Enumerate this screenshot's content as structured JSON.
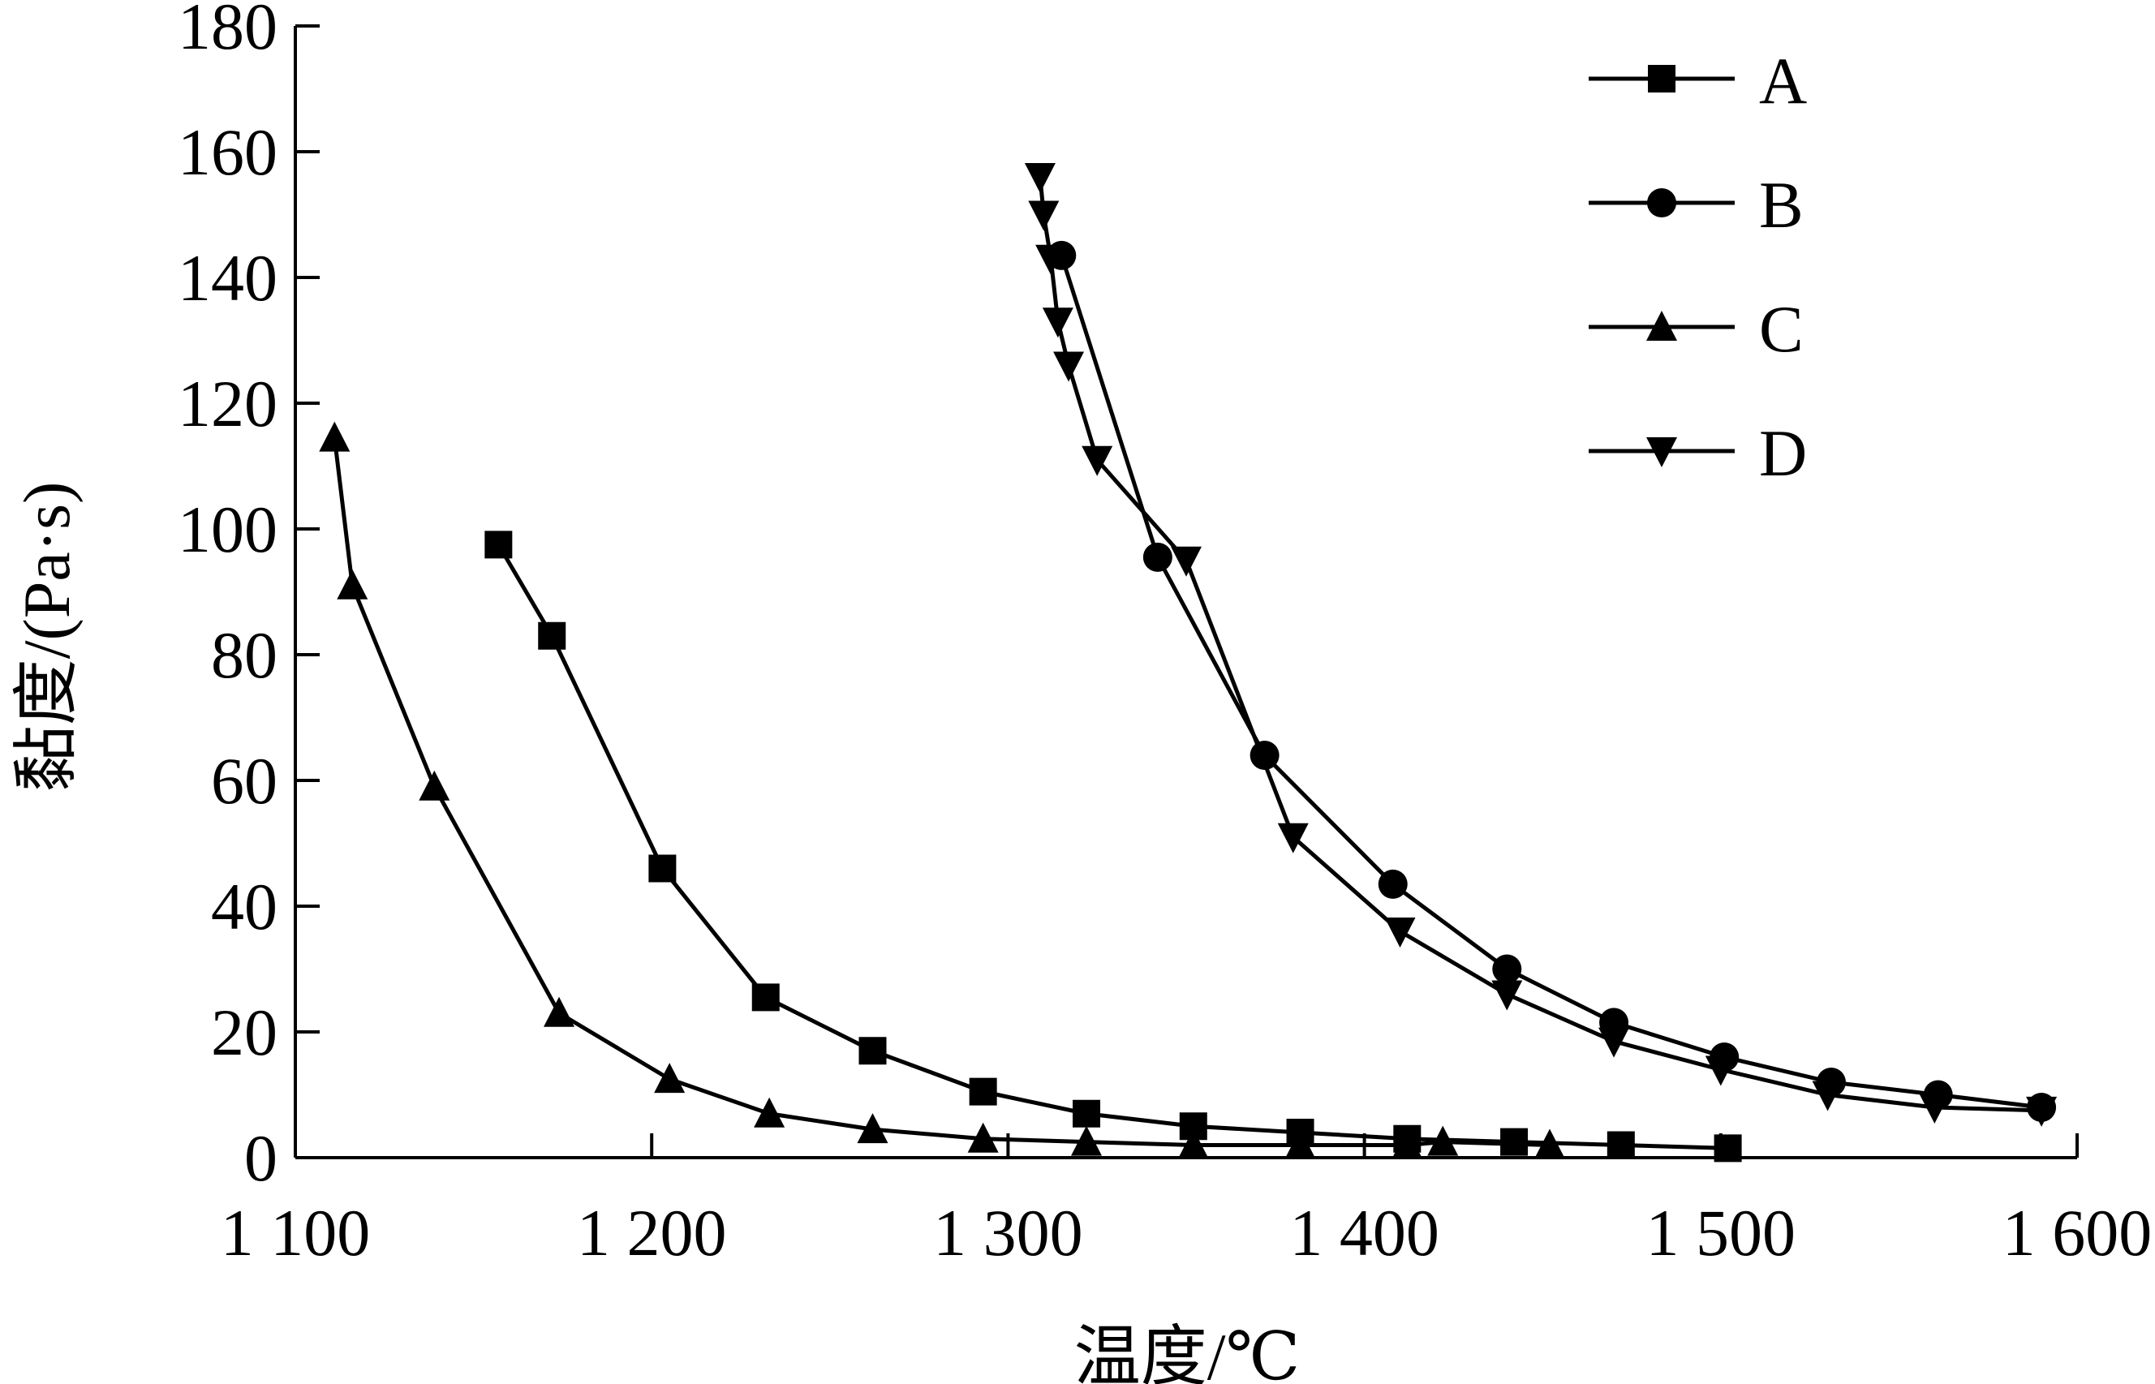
{
  "chart_data": {
    "type": "line",
    "title": "",
    "xlabel": "温度/℃",
    "ylabel": "黏度/(Pa·s)",
    "xlim": [
      1100,
      1600
    ],
    "ylim": [
      0,
      180
    ],
    "x_ticks": [
      1100,
      1200,
      1300,
      1400,
      1500,
      1600
    ],
    "x_tick_labels": [
      "1 100",
      "1 200",
      "1 300",
      "1 400",
      "1 500",
      "1 600"
    ],
    "y_ticks": [
      0,
      20,
      40,
      60,
      80,
      100,
      120,
      140,
      160,
      180
    ],
    "y_tick_labels": [
      "0",
      "20",
      "40",
      "60",
      "80",
      "100",
      "120",
      "140",
      "160",
      "180"
    ],
    "grid": false,
    "legend_position": "top-right",
    "series": [
      {
        "name": "A",
        "marker": "square",
        "x": [
          1157,
          1172,
          1203,
          1232,
          1262,
          1293,
          1322,
          1352,
          1382,
          1412,
          1442,
          1472,
          1502
        ],
        "y": [
          97.5,
          83,
          46,
          25.5,
          17,
          10.5,
          7,
          5,
          4,
          3,
          2.5,
          2,
          1.5
        ]
      },
      {
        "name": "B",
        "marker": "circle",
        "x": [
          1315,
          1342,
          1372,
          1408,
          1440,
          1470,
          1501,
          1531,
          1561,
          1590
        ],
        "y": [
          143.5,
          95.5,
          64,
          43.5,
          30,
          21.5,
          16,
          12,
          10,
          8
        ]
      },
      {
        "name": "C",
        "marker": "triangle-up",
        "x": [
          1111,
          1116,
          1139,
          1174,
          1205,
          1233,
          1262,
          1293,
          1322,
          1352,
          1382,
          1412,
          1422,
          1452
        ],
        "y": [
          114.5,
          91,
          59,
          23,
          12.5,
          7,
          4.5,
          3,
          2.5,
          2,
          2,
          2,
          2.5,
          2
        ]
      },
      {
        "name": "D",
        "marker": "triangle-down",
        "x": [
          1309,
          1310,
          1312,
          1314,
          1317,
          1325,
          1350,
          1380,
          1410,
          1440,
          1470,
          1500,
          1530,
          1560,
          1590
        ],
        "y": [
          156,
          150,
          143,
          133,
          126,
          111,
          95,
          51,
          36,
          26,
          18.5,
          14,
          10,
          8,
          7.5
        ]
      }
    ]
  }
}
